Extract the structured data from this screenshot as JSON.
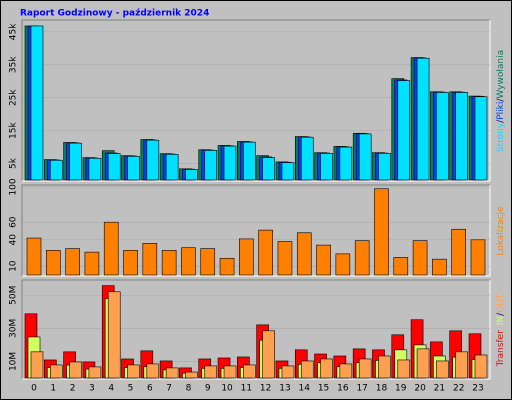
{
  "chart_data": [
    {
      "type": "bar",
      "title": "Raport Godzinowy -  październik 2024",
      "series": [
        {
          "name": "Wywołania",
          "color": "#00805c",
          "values": [
            46800,
            6200,
            11400,
            6800,
            8900,
            7400,
            12300,
            8000,
            3400,
            9200,
            10500,
            11700,
            7400,
            5500,
            13200,
            8300,
            10200,
            14200,
            8300,
            30800,
            37200,
            26800,
            26800,
            25500
          ]
        },
        {
          "name": "Pliki",
          "color": "#0040ff",
          "values": [
            46700,
            6100,
            11300,
            6700,
            8200,
            7300,
            12200,
            7900,
            3300,
            9100,
            10400,
            11600,
            7000,
            5400,
            13100,
            8200,
            10100,
            14100,
            8200,
            30400,
            37100,
            26700,
            26700,
            25400
          ]
        },
        {
          "name": "Strony",
          "color": "#00e0ff",
          "values": [
            46800,
            6000,
            11200,
            6600,
            8000,
            7200,
            12100,
            7800,
            3200,
            9000,
            10300,
            11500,
            6800,
            5300,
            13000,
            8100,
            10000,
            14000,
            8100,
            30200,
            37000,
            26600,
            26600,
            25300
          ]
        }
      ],
      "legend_reversed": true,
      "legend_separators": [
        "/",
        "/"
      ],
      "ylim": [
        0,
        48000
      ],
      "yticks": [
        {
          "value": 5000,
          "label": "5k"
        },
        {
          "value": 15000,
          "label": "15k"
        },
        {
          "value": 25000,
          "label": "25k"
        },
        {
          "value": 35000,
          "label": "35k"
        },
        {
          "value": 45000,
          "label": "45k"
        }
      ],
      "grid": true
    },
    {
      "type": "bar",
      "series": [
        {
          "name": "Lokalizacje",
          "color": "#ff8000",
          "values": [
            42,
            28,
            30,
            26,
            60,
            28,
            36,
            28,
            31,
            30,
            19,
            41,
            51,
            38,
            48,
            34,
            24,
            39,
            98,
            20,
            39,
            18,
            52,
            40
          ]
        }
      ],
      "ylim": [
        0,
        100
      ],
      "yticks": [
        10,
        40,
        60,
        100
      ],
      "grid": true
    },
    {
      "type": "bar",
      "categories": [
        "0",
        "1",
        "2",
        "3",
        "4",
        "5",
        "6",
        "7",
        "8",
        "9",
        "10",
        "11",
        "12",
        "13",
        "14",
        "15",
        "16",
        "17",
        "18",
        "19",
        "20",
        "21",
        "22",
        "23"
      ],
      "series": [
        {
          "name": "Transfer",
          "color": "#ff0000",
          "values": [
            38.8,
            10.9,
            15.8,
            9.7,
            55.8,
            11.5,
            16.4,
            10.3,
            6.1,
            11.5,
            12.1,
            12.7,
            32.1,
            10.3,
            17,
            14.5,
            13.3,
            17.6,
            17,
            26.1,
            35.2,
            21.8,
            28.5,
            26.7
          ]
        },
        {
          "name": "IN",
          "color": "#d0ff60",
          "values": [
            24.8,
            6.3,
            7.8,
            5.4,
            48,
            6.3,
            6.8,
            4.9,
            2.9,
            5.8,
            5.8,
            6.3,
            22.8,
            5.8,
            8.2,
            9.2,
            6.8,
            9.2,
            10.6,
            17,
            20,
            13.3,
            12.6,
            11.1
          ]
        },
        {
          "name": "OUT",
          "color": "#ffa050",
          "values": [
            15.8,
            7.9,
            9.7,
            6.7,
            52.1,
            7.9,
            8.5,
            6.1,
            3.6,
            7.3,
            7.3,
            7.9,
            28.5,
            7.3,
            10.3,
            11.5,
            8.5,
            11.5,
            13.3,
            10.9,
            17.6,
            10.3,
            15.8,
            13.9
          ]
        }
      ],
      "legend_separators": [
        null,
        "/"
      ],
      "ylim": [
        0,
        58
      ],
      "yticks": [
        {
          "value": 10,
          "label": "10M"
        },
        {
          "value": 30,
          "label": "30M"
        },
        {
          "value": 50,
          "label": "50M"
        }
      ],
      "grid": true
    }
  ]
}
